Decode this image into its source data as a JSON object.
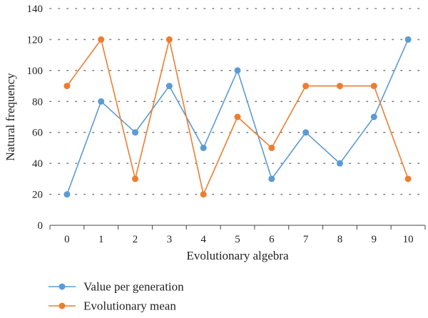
{
  "chart_data": {
    "type": "line",
    "title": "",
    "xlabel": "Evolutionary algebra",
    "ylabel": "Natural frequency",
    "categories": [
      "0",
      "1",
      "2",
      "3",
      "4",
      "5",
      "6",
      "7",
      "8",
      "9",
      "10"
    ],
    "ylim": [
      0,
      140
    ],
    "yticks": [
      "0",
      "20",
      "40",
      "60",
      "80",
      "100",
      "120",
      "140"
    ],
    "grid": "horizontal dotted",
    "legend_position": "bottom-left",
    "series": [
      {
        "name": "Value per generation",
        "color": "#5b9bd5",
        "values": [
          20,
          80,
          60,
          90,
          50,
          100,
          30,
          60,
          40,
          70,
          120
        ]
      },
      {
        "name": "Evolutionary mean",
        "color": "#ed7d31",
        "values": [
          90,
          120,
          30,
          120,
          20,
          70,
          50,
          90,
          90,
          90,
          30
        ]
      }
    ]
  }
}
